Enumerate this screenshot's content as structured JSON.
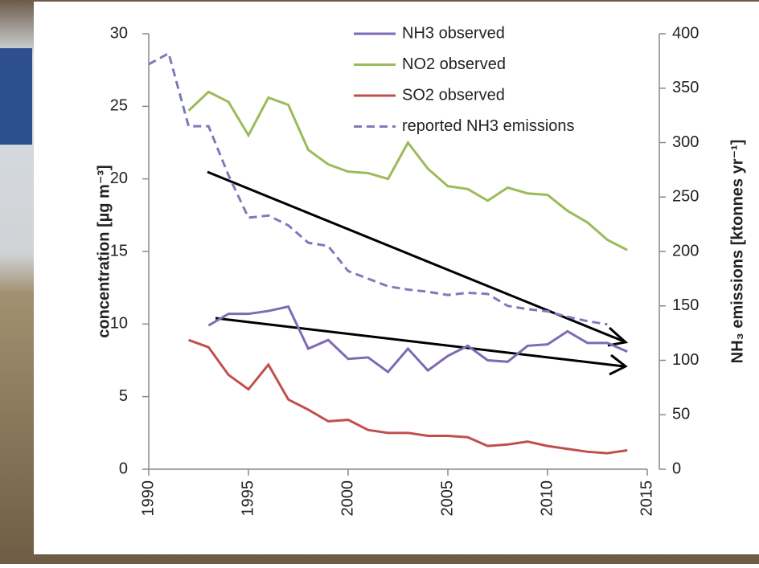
{
  "chart_data": {
    "type": "line",
    "y_label": "concentration [µg m⁻³]",
    "y2_label": "NH₃ emissions [ktonnes yr⁻¹]",
    "xlim": [
      1990,
      2015
    ],
    "xticks": [
      1990,
      1995,
      2000,
      2005,
      2010,
      2015
    ],
    "ylim": [
      0,
      30
    ],
    "yticks": [
      0,
      5,
      10,
      15,
      20,
      25,
      30
    ],
    "y2lim": [
      0,
      400
    ],
    "y2ticks": [
      0,
      50,
      100,
      150,
      200,
      250,
      300,
      350,
      400
    ],
    "series": [
      {
        "name": "NH3 observed",
        "color": "#7f6ab5",
        "x": [
          1993,
          1994,
          1995,
          1996,
          1997,
          1998,
          1999,
          2000,
          2001,
          2002,
          2003,
          2004,
          2005,
          2006,
          2007,
          2008,
          2009,
          2010,
          2011,
          2012,
          2013,
          2014
        ],
        "values": [
          9.9,
          10.7,
          10.7,
          10.9,
          11.2,
          8.3,
          8.9,
          7.6,
          7.7,
          6.7,
          8.3,
          6.8,
          7.8,
          8.5,
          7.5,
          7.4,
          8.5,
          8.6,
          9.5,
          8.7,
          8.7,
          8.1
        ]
      },
      {
        "name": "NO2 observed",
        "color": "#9bbb59",
        "x": [
          1992,
          1993,
          1994,
          1995,
          1996,
          1997,
          1998,
          1999,
          2000,
          2001,
          2002,
          2003,
          2004,
          2005,
          2006,
          2007,
          2008,
          2009,
          2010,
          2011,
          2012,
          2013,
          2014
        ],
        "values": [
          24.7,
          26.0,
          25.3,
          23.0,
          25.6,
          25.1,
          22.0,
          21.0,
          20.5,
          20.4,
          20.0,
          22.5,
          20.7,
          19.5,
          19.3,
          18.5,
          19.4,
          19.0,
          18.9,
          17.8,
          17.0,
          15.8,
          15.1
        ]
      },
      {
        "name": "SO2 observed",
        "color": "#c0504d",
        "x": [
          1992,
          1993,
          1994,
          1995,
          1996,
          1997,
          1998,
          1999,
          2000,
          2001,
          2002,
          2003,
          2004,
          2005,
          2006,
          2007,
          2008,
          2009,
          2010,
          2011,
          2012,
          2013,
          2014
        ],
        "values": [
          8.9,
          8.4,
          6.5,
          5.5,
          7.2,
          4.8,
          4.1,
          3.3,
          3.4,
          2.7,
          2.5,
          2.5,
          2.3,
          2.3,
          2.2,
          1.6,
          1.7,
          1.9,
          1.6,
          1.4,
          1.2,
          1.1,
          1.3
        ]
      },
      {
        "name": "reported NH3 emissions",
        "color": "#7b7bbd",
        "dashed": true,
        "axis": "y2",
        "x": [
          1990,
          1991,
          1992,
          1993,
          1994,
          1995,
          1996,
          1997,
          1998,
          1999,
          2000,
          2001,
          2002,
          2003,
          2004,
          2005,
          2006,
          2007,
          2008,
          2009,
          2010,
          2011,
          2012,
          2013
        ],
        "values": [
          372,
          382,
          315,
          315,
          270,
          231,
          233,
          224,
          208,
          205,
          182,
          175,
          168,
          165,
          163,
          160,
          162,
          161,
          150,
          147,
          145,
          140,
          136,
          133
        ]
      }
    ]
  }
}
